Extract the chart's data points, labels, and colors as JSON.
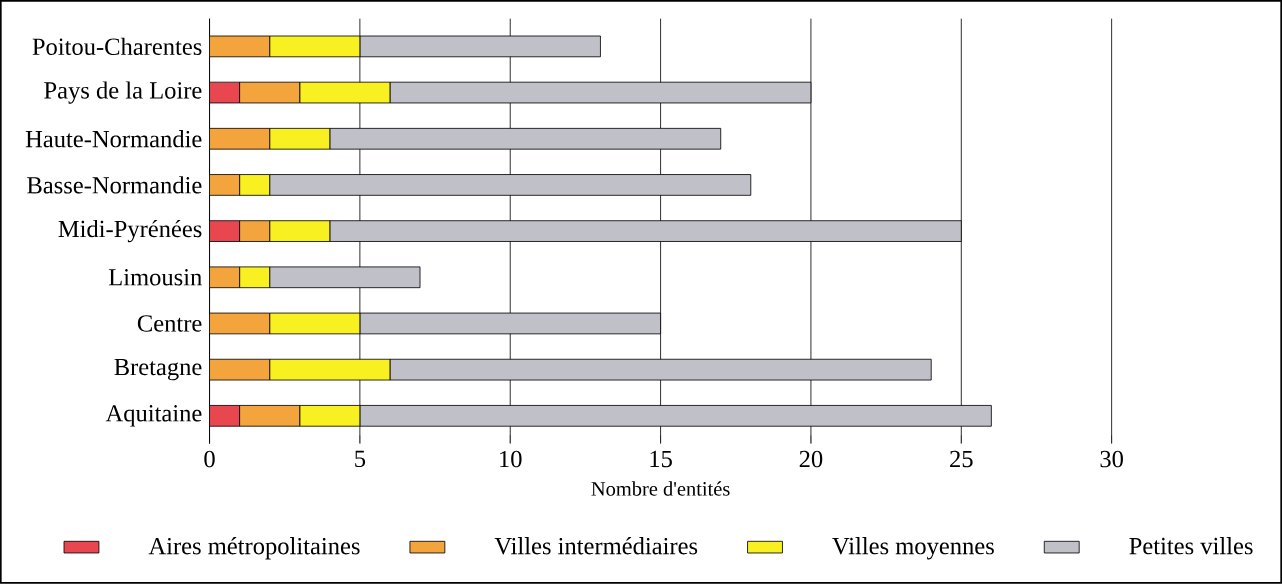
{
  "chart_data": {
    "type": "bar",
    "orientation": "horizontal",
    "stacked": true,
    "categories": [
      "Poitou-Charentes",
      "Pays de la Loire",
      "Haute-Normandie",
      "Basse-Normandie",
      "Midi-Pyrénées",
      "Limousin",
      "Centre",
      "Bretagne",
      "Aquitaine"
    ],
    "series": [
      {
        "name": "Aires métropolitaines",
        "color": "#e8474f",
        "values": [
          0,
          1,
          0,
          0,
          1,
          0,
          0,
          0,
          1
        ]
      },
      {
        "name": "Villes intermédiaires",
        "color": "#f4a43c",
        "values": [
          2,
          2,
          2,
          1,
          1,
          1,
          2,
          2,
          2
        ]
      },
      {
        "name": "Villes moyennes",
        "color": "#f8f020",
        "values": [
          3,
          3,
          2,
          1,
          2,
          1,
          3,
          4,
          2
        ]
      },
      {
        "name": "Petites villes",
        "color": "#c0c0c8",
        "values": [
          8,
          14,
          13,
          16,
          21,
          5,
          10,
          18,
          21
        ]
      }
    ],
    "xlabel": "Nombre d'entités",
    "xlim": [
      0,
      30
    ],
    "xticks": [
      0,
      5,
      10,
      15,
      20,
      25,
      30
    ],
    "grid": "x",
    "legend": "bottom"
  }
}
